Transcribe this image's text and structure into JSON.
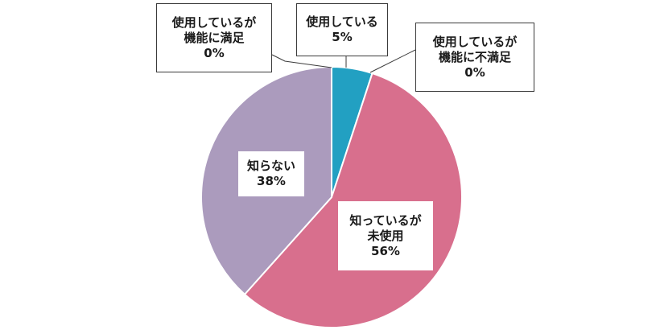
{
  "chart_data": {
    "type": "pie",
    "start_angle_deg": 0,
    "direction": "clockwise",
    "slices": [
      {
        "label_lines": [
          "使用している"
        ],
        "value_label": "5%",
        "value": 5,
        "color": "#22a0c2"
      },
      {
        "label_lines": [
          "使用しているが",
          "機能に不満足"
        ],
        "value_label": "0%",
        "value": 0,
        "color": "#2b4f8c"
      },
      {
        "label_lines": [
          "知っているが",
          "未使用"
        ],
        "value_label": "56%",
        "value": 56,
        "color": "#d86f8d"
      },
      {
        "label_lines": [
          "知らない"
        ],
        "value_label": "38%",
        "value": 38,
        "color": "#ab9bbd"
      },
      {
        "label_lines": [
          "使用しているが",
          "機能に満足"
        ],
        "value_label": "0%",
        "value": 0,
        "color": "#6aa84f"
      }
    ]
  }
}
